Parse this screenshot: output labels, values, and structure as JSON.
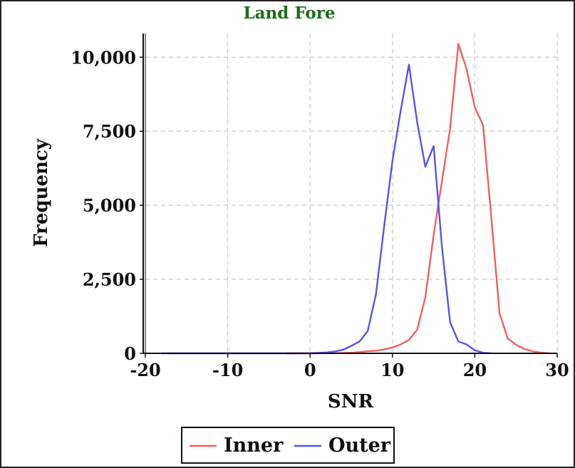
{
  "chart_data": {
    "type": "line",
    "title": "Land Fore",
    "title_color": "#1f6b1f",
    "xlabel": "SNR",
    "ylabel": "Frequency",
    "xlim": [
      -20,
      30
    ],
    "ylim": [
      0,
      10800
    ],
    "grid": true,
    "legend_position": "bottom-center",
    "x_ticks": [
      -20,
      -10,
      0,
      10,
      20,
      30
    ],
    "x_tick_labels": [
      "-20",
      "-10",
      "0",
      "10",
      "20",
      "30"
    ],
    "y_ticks": [
      0,
      2500,
      5000,
      7500,
      10000
    ],
    "y_tick_labels": [
      "0",
      "2,500",
      "5,000",
      "7,500",
      "10,000"
    ],
    "series": [
      {
        "name": "Inner",
        "color": "#f06060",
        "x": [
          -3,
          0,
          3,
          5,
          6,
          7,
          8,
          9,
          10,
          11,
          12,
          13,
          14,
          15,
          16,
          17,
          18,
          19,
          20,
          21,
          22,
          23,
          24,
          25,
          26,
          27,
          28,
          29
        ],
        "y": [
          0,
          0,
          5,
          20,
          40,
          70,
          90,
          130,
          200,
          300,
          450,
          800,
          1900,
          4000,
          5800,
          7600,
          10450,
          9600,
          8300,
          7700,
          4600,
          1350,
          500,
          290,
          150,
          70,
          25,
          5
        ]
      },
      {
        "name": "Outer",
        "color": "#5555ee",
        "x": [
          -18,
          -10,
          -5,
          -2,
          0,
          2,
          3,
          4,
          5,
          6,
          7,
          8,
          9,
          10,
          11,
          12,
          13,
          14,
          15,
          16,
          17,
          18,
          19,
          20,
          21,
          22
        ],
        "y": [
          0,
          0,
          0,
          0,
          5,
          30,
          60,
          120,
          250,
          400,
          750,
          2000,
          4300,
          6500,
          8200,
          9750,
          7800,
          6300,
          7000,
          3600,
          1050,
          400,
          300,
          100,
          20,
          0
        ]
      }
    ]
  }
}
